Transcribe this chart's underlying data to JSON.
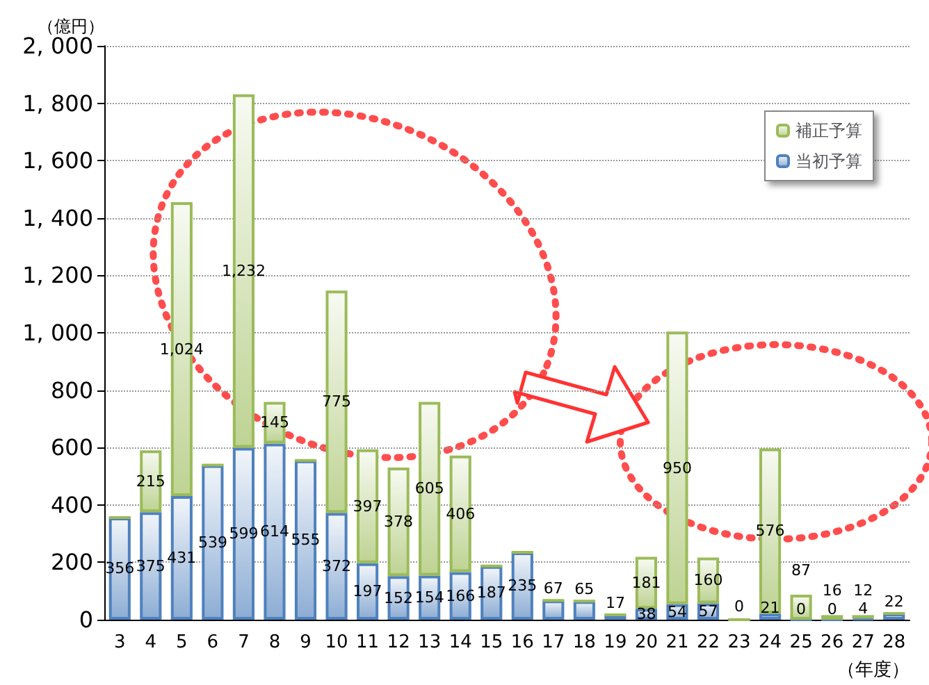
{
  "chart_data": {
    "type": "bar",
    "stacked": true,
    "ylabel": "（億円）",
    "xlabel": "（年度）",
    "categories": [
      "3",
      "4",
      "5",
      "6",
      "7",
      "8",
      "9",
      "10",
      "11",
      "12",
      "13",
      "14",
      "15",
      "16",
      "17",
      "18",
      "19",
      "20",
      "21",
      "22",
      "23",
      "24",
      "25",
      "26",
      "27",
      "28"
    ],
    "series": [
      {
        "name": "当初予算",
        "color": "#4f81bd",
        "values": [
          356,
          375,
          431,
          539,
          599,
          614,
          555,
          372,
          197,
          152,
          154,
          166,
          187,
          235,
          67,
          65,
          17,
          38,
          54,
          57,
          0,
          21,
          0,
          0,
          4,
          22
        ],
        "value_labels": [
          "356",
          "375",
          "431",
          "539",
          "599",
          "614",
          "555",
          "372",
          "197",
          "152",
          "154",
          "166",
          "187",
          "235",
          "67",
          "65",
          "17",
          "38",
          "54",
          "57",
          "0",
          "21",
          "0",
          "0",
          "4",
          "22"
        ]
      },
      {
        "name": "補正予算",
        "color": "#9bbb59",
        "values": [
          0,
          215,
          1024,
          0,
          1232,
          145,
          0,
          775,
          397,
          378,
          605,
          406,
          0,
          0,
          0,
          0,
          0,
          181,
          950,
          160,
          0,
          576,
          87,
          16,
          12,
          0
        ],
        "value_labels": [
          null,
          "215",
          "1,024",
          null,
          "1,232",
          "145",
          null,
          "775",
          "397",
          "378",
          "605",
          "406",
          null,
          null,
          null,
          null,
          null,
          "181",
          "950",
          "160",
          null,
          "576",
          "87",
          "16",
          "12",
          null
        ]
      }
    ],
    "ylim": [
      0,
      2000
    ],
    "yticks": [
      0,
      200,
      400,
      600,
      800,
      {
        "value": 1000,
        "label": "1, 000"
      },
      {
        "value": 1200,
        "label": "1, 200"
      },
      {
        "value": 1400,
        "label": "1, 400"
      },
      {
        "value": 1600,
        "label": "1, 600"
      },
      {
        "value": 1800,
        "label": "1, 800"
      },
      {
        "value": 2000,
        "label": "2, 000"
      }
    ],
    "grid": "y",
    "legend": "top right"
  }
}
